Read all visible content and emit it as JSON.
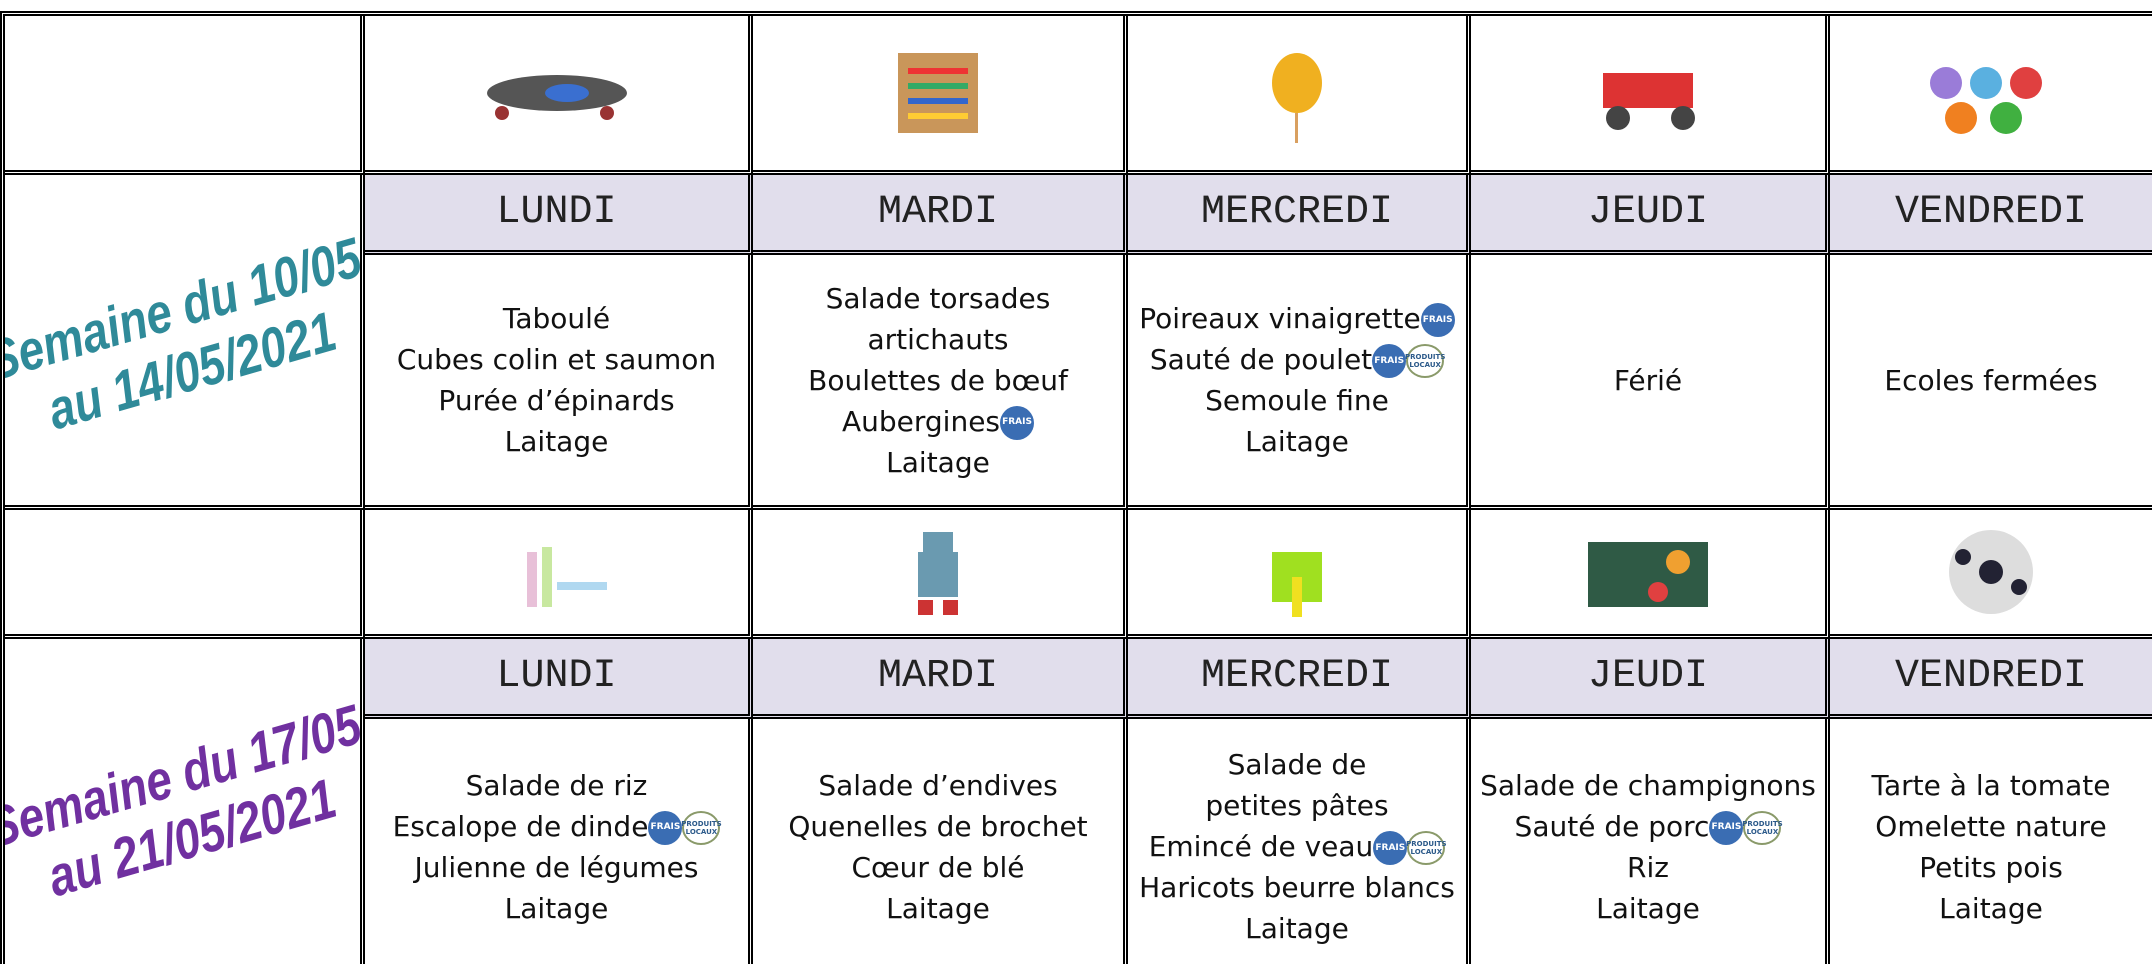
{
  "weeks": [
    {
      "label": [
        "Semaine du 10/05",
        "au 14/05/2021"
      ],
      "days": [
        {
          "name": "LUNDI",
          "lines": [
            {
              "text": "Taboulé"
            },
            {
              "text": "Cubes colin et saumon"
            },
            {
              "text": "Purée d’épinards"
            },
            {
              "text": "Laitage"
            }
          ]
        },
        {
          "name": "MARDI",
          "lines": [
            {
              "text": "Salade torsades"
            },
            {
              "text": "artichauts"
            },
            {
              "text": "Boulettes de bœuf"
            },
            {
              "text": "Aubergines",
              "badges": [
                "FRAIS"
              ]
            },
            {
              "text": "Laitage"
            }
          ]
        },
        {
          "name": "MERCREDI",
          "lines": [
            {
              "text": "Poireaux vinaigrette",
              "badges": [
                "FRAIS"
              ]
            },
            {
              "text": "Sauté de poulet",
              "badges": [
                "FRAIS",
                "PRODUITS LOCAUX"
              ]
            },
            {
              "text": "Semoule fine"
            },
            {
              "text": "Laitage"
            }
          ]
        },
        {
          "name": "JEUDI",
          "lines": [
            {
              "text": "Férié"
            }
          ]
        },
        {
          "name": "VENDREDI",
          "lines": [
            {
              "text": "Ecoles fermées"
            }
          ]
        }
      ]
    },
    {
      "label": [
        "Semaine du 17/05",
        "au 21/05/2021"
      ],
      "days": [
        {
          "name": "LUNDI",
          "lines": [
            {
              "text": "Salade de riz"
            },
            {
              "text": "Escalope de dinde",
              "badges": [
                "FRAIS",
                "PRODUITS LOCAUX"
              ]
            },
            {
              "text": "Julienne de légumes"
            },
            {
              "text": "Laitage"
            }
          ]
        },
        {
          "name": "MARDI",
          "lines": [
            {
              "text": "Salade d’endives"
            },
            {
              "text": "Quenelles de brochet"
            },
            {
              "text": "Cœur de blé"
            },
            {
              "text": "Laitage"
            }
          ]
        },
        {
          "name": "MERCREDI",
          "lines": [
            {
              "text": "Salade de"
            },
            {
              "text": "petites pâtes"
            },
            {
              "text": "Emincé de veau",
              "badges": [
                "FRAIS",
                "PRODUITS LOCAUX"
              ]
            },
            {
              "text": "Haricots beurre blancs"
            },
            {
              "text": "Laitage"
            }
          ]
        },
        {
          "name": "JEUDI",
          "lines": [
            {
              "text": "Salade de champignons"
            },
            {
              "text": "Sauté de porc",
              "badges": [
                "FRAIS",
                "PRODUITS LOCAUX"
              ]
            },
            {
              "text": "Riz"
            },
            {
              "text": "Laitage"
            }
          ]
        },
        {
          "name": "VENDREDI",
          "lines": [
            {
              "text": "Tarte à la tomate"
            },
            {
              "text": "Omelette nature"
            },
            {
              "text": "Petits pois"
            },
            {
              "text": "Laitage"
            }
          ]
        }
      ]
    }
  ]
}
